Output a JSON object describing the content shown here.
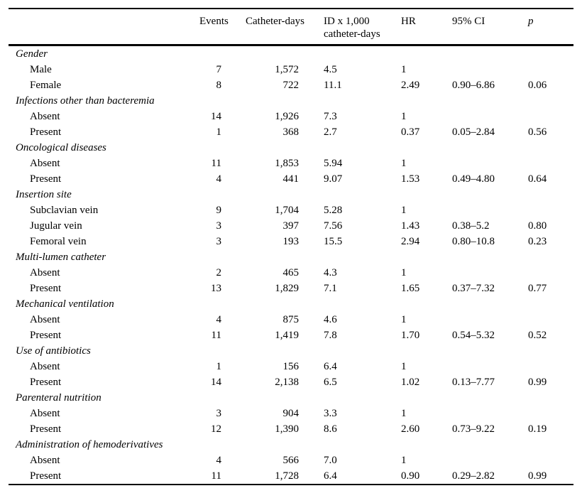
{
  "table": {
    "header": {
      "events": "Events",
      "catheter_days": "Catheter-days",
      "id_line1": "ID x 1,000",
      "id_line2": "catheter-days",
      "hr": "HR",
      "ci": "95% CI",
      "p": "p"
    },
    "sections": [
      {
        "title": "Gender",
        "rows": [
          {
            "label": "Male",
            "events": "7",
            "catheter_days": "1,572",
            "id_rate": "4.5",
            "hr": "1",
            "ci": "",
            "p": ""
          },
          {
            "label": "Female",
            "events": "8",
            "catheter_days": "722",
            "id_rate": "11.1",
            "hr": "2.49",
            "ci": "0.90–6.86",
            "p": "0.06"
          }
        ]
      },
      {
        "title": "Infections other than bacteremia",
        "rows": [
          {
            "label": "Absent",
            "events": "14",
            "catheter_days": "1,926",
            "id_rate": "7.3",
            "hr": "1",
            "ci": "",
            "p": ""
          },
          {
            "label": "Present",
            "events": "1",
            "catheter_days": "368",
            "id_rate": "2.7",
            "hr": "0.37",
            "ci": "0.05–2.84",
            "p": "0.56"
          }
        ]
      },
      {
        "title": "Oncological diseases",
        "rows": [
          {
            "label": "Absent",
            "events": "11",
            "catheter_days": "1,853",
            "id_rate": "5.94",
            "hr": "1",
            "ci": "",
            "p": ""
          },
          {
            "label": "Present",
            "events": "4",
            "catheter_days": "441",
            "id_rate": "9.07",
            "hr": "1.53",
            "ci": "0.49–4.80",
            "p": "0.64"
          }
        ]
      },
      {
        "title": "Insertion site",
        "rows": [
          {
            "label": "Subclavian vein",
            "events": "9",
            "catheter_days": "1,704",
            "id_rate": "5.28",
            "hr": "1",
            "ci": "",
            "p": ""
          },
          {
            "label": "Jugular vein",
            "events": "3",
            "catheter_days": "397",
            "id_rate": "7.56",
            "hr": "1.43",
            "ci": "0.38–5.2",
            "p": "0.80"
          },
          {
            "label": "Femoral vein",
            "events": "3",
            "catheter_days": "193",
            "id_rate": "15.5",
            "hr": "2.94",
            "ci": "0.80–10.8",
            "p": "0.23"
          }
        ]
      },
      {
        "title": "Multi-lumen catheter",
        "rows": [
          {
            "label": "Absent",
            "events": "2",
            "catheter_days": "465",
            "id_rate": "4.3",
            "hr": "1",
            "ci": "",
            "p": ""
          },
          {
            "label": "Present",
            "events": "13",
            "catheter_days": "1,829",
            "id_rate": "7.1",
            "hr": "1.65",
            "ci": "0.37–7.32",
            "p": "0.77"
          }
        ]
      },
      {
        "title": "Mechanical ventilation",
        "rows": [
          {
            "label": "Absent",
            "events": "4",
            "catheter_days": "875",
            "id_rate": "4.6",
            "hr": "1",
            "ci": "",
            "p": ""
          },
          {
            "label": "Present",
            "events": "11",
            "catheter_days": "1,419",
            "id_rate": "7.8",
            "hr": "1.70",
            "ci": "0.54–5.32",
            "p": "0.52"
          }
        ]
      },
      {
        "title": "Use of antibiotics",
        "rows": [
          {
            "label": "Absent",
            "events": "1",
            "catheter_days": "156",
            "id_rate": "6.4",
            "hr": "1",
            "ci": "",
            "p": ""
          },
          {
            "label": "Present",
            "events": "14",
            "catheter_days": "2,138",
            "id_rate": "6.5",
            "hr": "1.02",
            "ci": "0.13–7.77",
            "p": "0.99"
          }
        ]
      },
      {
        "title": "Parenteral nutrition",
        "rows": [
          {
            "label": "Absent",
            "events": "3",
            "catheter_days": "904",
            "id_rate": "3.3",
            "hr": "1",
            "ci": "",
            "p": ""
          },
          {
            "label": "Present",
            "events": "12",
            "catheter_days": "1,390",
            "id_rate": "8.6",
            "hr": "2.60",
            "ci": "0.73–9.22",
            "p": "0.19"
          }
        ]
      },
      {
        "title": "Administration of hemoderivatives",
        "rows": [
          {
            "label": "Absent",
            "events": "4",
            "catheter_days": "566",
            "id_rate": "7.0",
            "hr": "1",
            "ci": "",
            "p": ""
          },
          {
            "label": "Present",
            "events": "11",
            "catheter_days": "1,728",
            "id_rate": "6.4",
            "hr": "0.90",
            "ci": "0.29–2.82",
            "p": "0.99"
          }
        ]
      }
    ]
  }
}
